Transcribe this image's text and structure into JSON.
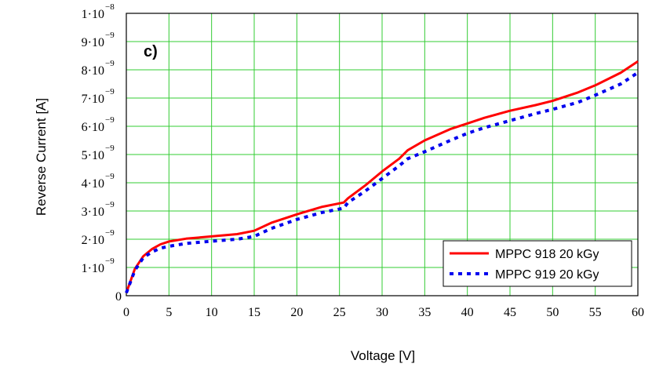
{
  "chart_data": {
    "type": "line",
    "panel_label": "c)",
    "xlabel": "Voltage [V]",
    "ylabel": "Reverse Current [A]",
    "xlim": [
      0,
      60
    ],
    "ylim": [
      0,
      1e-08
    ],
    "grid": true,
    "legend_position": "bottom-right",
    "x_ticks": [
      "0",
      "5",
      "10",
      "15",
      "20",
      "25",
      "30",
      "35",
      "40",
      "45",
      "50",
      "55",
      "60"
    ],
    "y_ticks": [
      {
        "mantissa": "1·10",
        "exponent": "−9",
        "value": 1e-09
      },
      {
        "mantissa": "2·10",
        "exponent": "−9",
        "value": 2e-09
      },
      {
        "mantissa": "3·10",
        "exponent": "−9",
        "value": 3e-09
      },
      {
        "mantissa": "4·10",
        "exponent": "−9",
        "value": 4e-09
      },
      {
        "mantissa": "5·10",
        "exponent": "−9",
        "value": 5e-09
      },
      {
        "mantissa": "6·10",
        "exponent": "−9",
        "value": 6e-09
      },
      {
        "mantissa": "7·10",
        "exponent": "−9",
        "value": 7e-09
      },
      {
        "mantissa": "8·10",
        "exponent": "−9",
        "value": 8e-09
      },
      {
        "mantissa": "9·10",
        "exponent": "−9",
        "value": 9e-09
      },
      {
        "mantissa": "1·10",
        "exponent": "−8",
        "value": 1e-08
      }
    ],
    "y_zero_label": "0",
    "series": [
      {
        "name": "MPPC 918 20 kGy",
        "color": "#ff0000",
        "style": "solid",
        "x": [
          0,
          1,
          2,
          3,
          4,
          5,
          7,
          10,
          13,
          15,
          17,
          20,
          23,
          25.5,
          26,
          28,
          30,
          32,
          33,
          35,
          38,
          40,
          42,
          45,
          48,
          50,
          53,
          55,
          58,
          60
        ],
        "y": [
          1e-10,
          9.5e-10,
          1.4e-09,
          1.65e-09,
          1.82e-09,
          1.92e-09,
          2.02e-09,
          2.1e-09,
          2.18e-09,
          2.3e-09,
          2.58e-09,
          2.88e-09,
          3.15e-09,
          3.3e-09,
          3.45e-09,
          3.9e-09,
          4.4e-09,
          4.85e-09,
          5.15e-09,
          5.5e-09,
          5.9e-09,
          6.1e-09,
          6.3e-09,
          6.55e-09,
          6.75e-09,
          6.9e-09,
          7.2e-09,
          7.45e-09,
          7.9e-09,
          8.3e-09
        ]
      },
      {
        "name": "MPPC 919 20 kGy",
        "color": "#0000ee",
        "style": "dotted",
        "x": [
          0,
          1,
          2,
          3,
          4,
          5,
          7,
          10,
          13,
          15,
          17,
          20,
          23,
          25.5,
          26,
          28,
          30,
          32,
          33,
          35,
          38,
          40,
          42,
          45,
          48,
          50,
          53,
          55,
          58,
          60
        ],
        "y": [
          1e-10,
          9e-10,
          1.35e-09,
          1.55e-09,
          1.68e-09,
          1.75e-09,
          1.85e-09,
          1.93e-09,
          2e-09,
          2.1e-09,
          2.38e-09,
          2.7e-09,
          2.95e-09,
          3.1e-09,
          3.3e-09,
          3.7e-09,
          4.15e-09,
          4.6e-09,
          4.85e-09,
          5.1e-09,
          5.5e-09,
          5.75e-09,
          5.95e-09,
          6.2e-09,
          6.45e-09,
          6.6e-09,
          6.85e-09,
          7.1e-09,
          7.5e-09,
          7.9e-09
        ]
      }
    ]
  }
}
